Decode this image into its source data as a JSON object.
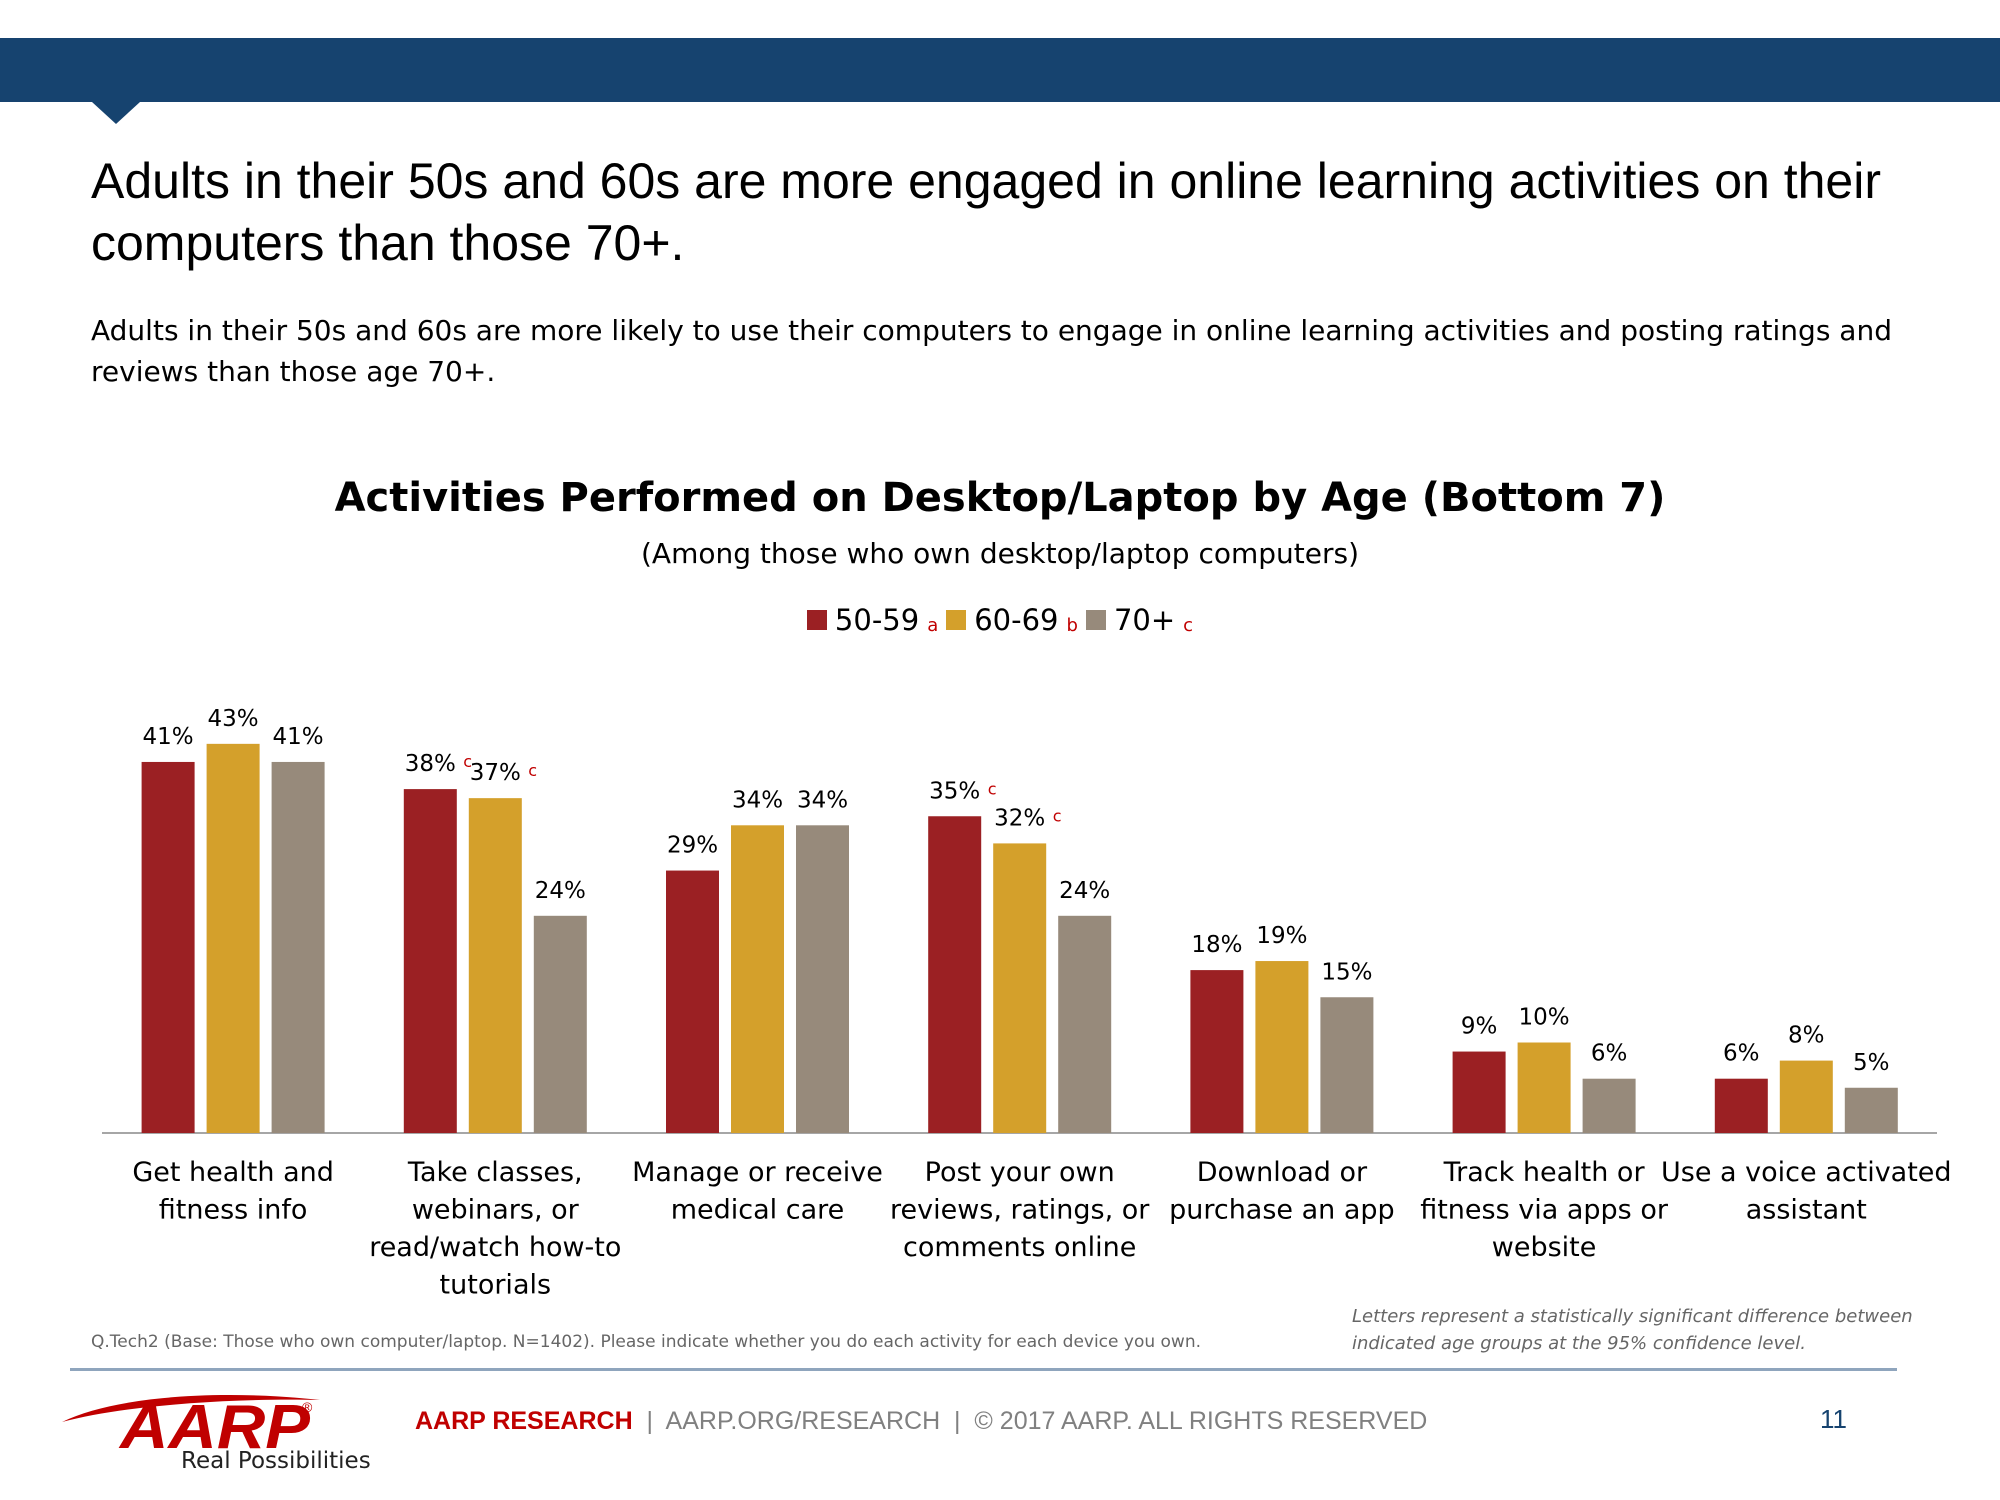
{
  "headline": "Adults in their 50s and 60s are more engaged in online learning activities on their computers than those 70+.",
  "subtext": "Adults in their 50s and 60s are more likely to use their computers to engage in online learning activities and posting ratings and reviews than those age 70+.",
  "colors": {
    "header_bar": "#16436f",
    "series_50_59": "#9b2023",
    "series_60_69": "#d4a02b",
    "series_70_plus": "#978a7b",
    "sig_letter": "#c00000"
  },
  "chart_data": {
    "type": "bar",
    "title": "Activities Performed on Desktop/Laptop by Age (Bottom 7)",
    "subtitle": "(Among those who own desktop/laptop computers)",
    "categories": [
      [
        "Get health and",
        "fitness info"
      ],
      [
        "Take classes,",
        "webinars, or",
        "read/watch how-to",
        "tutorials"
      ],
      [
        "Manage or receive",
        "medical care"
      ],
      [
        "Post your own",
        "reviews, ratings, or",
        "comments online"
      ],
      [
        "Download or",
        "purchase an app"
      ],
      [
        "Track health or",
        "fitness via apps or",
        "website"
      ],
      [
        "Use a voice activated",
        "assistant"
      ]
    ],
    "series": [
      {
        "name": "50-59",
        "sig_label": "a",
        "color": "#9b2023",
        "values": [
          41,
          38,
          29,
          35,
          18,
          9,
          6
        ],
        "sig": [
          "",
          "c",
          "",
          "c",
          "",
          "",
          ""
        ]
      },
      {
        "name": "60-69",
        "sig_label": "b",
        "color": "#d4a02b",
        "values": [
          43,
          37,
          34,
          32,
          19,
          10,
          8
        ],
        "sig": [
          "",
          "c",
          "",
          "c",
          "",
          "",
          ""
        ]
      },
      {
        "name": "70+",
        "sig_label": "c",
        "color": "#978a7b",
        "values": [
          41,
          24,
          34,
          24,
          15,
          6,
          5
        ],
        "sig": [
          "",
          "",
          "",
          "",
          "",
          "",
          ""
        ]
      }
    ],
    "value_suffix": "%",
    "ylim": [
      0,
      45
    ],
    "legend_position": "top-center",
    "grid": false
  },
  "footnote_left": "Q.Tech2 (Base: Those who own computer/laptop. N=1402). Please indicate whether you do each activity for each device you own.",
  "footnote_right": "Letters represent a statistically significant difference between indicated age groups at the 95% confidence level.",
  "footer": {
    "brand": "AARP RESEARCH",
    "rest": "  |  AARP.ORG/RESEARCH  |  © 2017 AARP. ALL RIGHTS RESERVED",
    "page_number": "11"
  },
  "logo": {
    "wordmark": "AARP",
    "registered": "®",
    "tagline": "Real Possibilities"
  }
}
